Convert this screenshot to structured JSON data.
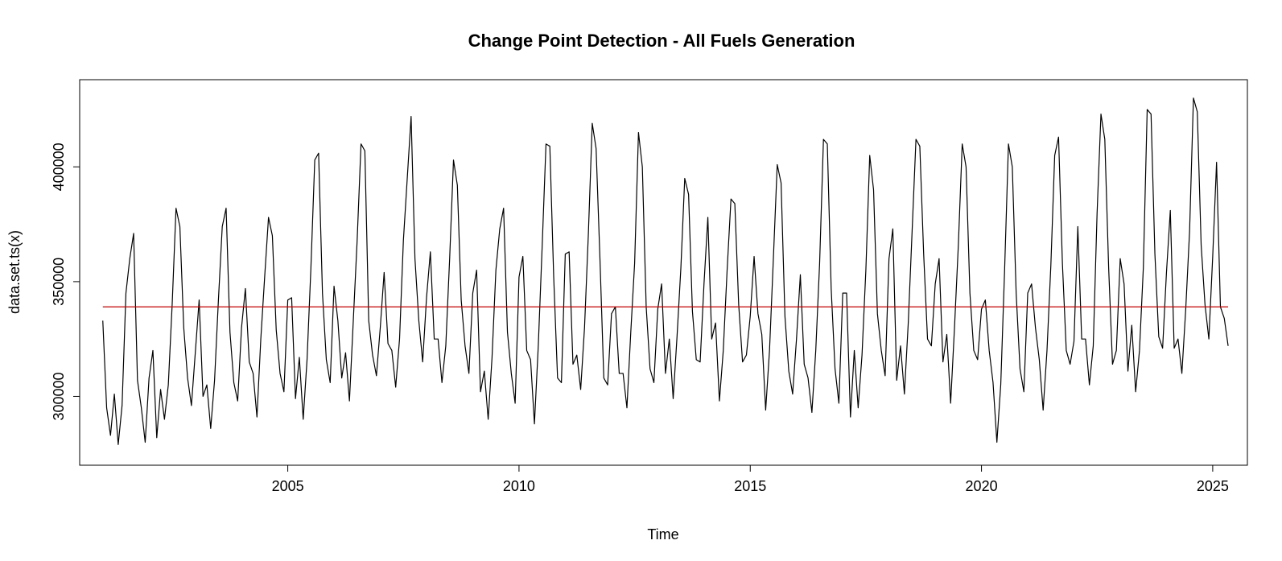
{
  "chart_data": {
    "type": "line",
    "title": "Change Point Detection - All Fuels Generation",
    "xlabel": "Time",
    "ylabel": "data.set.ts(x)",
    "xlim": [
      2000.5,
      2025.75
    ],
    "ylim": [
      270000,
      438000
    ],
    "x_ticks": [
      2005,
      2010,
      2015,
      2020,
      2025
    ],
    "y_ticks": [
      300000,
      350000,
      400000
    ],
    "grid": false,
    "legend": "none",
    "x_start": 2001.0,
    "frequency": 12,
    "series": [
      {
        "color": "#000000",
        "values": [
          333000,
          295000,
          283000,
          301000,
          279000,
          296000,
          345000,
          360000,
          371000,
          307000,
          295000,
          280000,
          308000,
          320000,
          282000,
          303000,
          290000,
          305000,
          340000,
          382000,
          374000,
          330000,
          308000,
          296000,
          319000,
          342000,
          300000,
          305000,
          286000,
          307000,
          342000,
          374000,
          382000,
          328000,
          306000,
          298000,
          330000,
          347000,
          315000,
          310000,
          291000,
          325000,
          352000,
          378000,
          370000,
          329000,
          310000,
          302000,
          342000,
          343000,
          299000,
          317000,
          290000,
          316000,
          356000,
          403000,
          406000,
          345000,
          316000,
          306000,
          348000,
          333000,
          308000,
          319000,
          298000,
          333000,
          368000,
          410000,
          407000,
          333000,
          318000,
          309000,
          330000,
          354000,
          323000,
          320000,
          304000,
          325000,
          368000,
          395000,
          422000,
          360000,
          333000,
          315000,
          343000,
          363000,
          325000,
          325000,
          306000,
          322000,
          360000,
          403000,
          392000,
          342000,
          322000,
          310000,
          345000,
          355000,
          302000,
          311000,
          290000,
          317000,
          355000,
          373000,
          382000,
          328000,
          310000,
          297000,
          352000,
          361000,
          320000,
          316000,
          288000,
          322000,
          365000,
          410000,
          409000,
          352000,
          308000,
          306000,
          362000,
          363000,
          314000,
          318000,
          303000,
          330000,
          371000,
          419000,
          408000,
          360000,
          308000,
          305000,
          336000,
          339000,
          310000,
          310000,
          295000,
          328000,
          358000,
          415000,
          400000,
          339000,
          312000,
          306000,
          338000,
          349000,
          310000,
          325000,
          299000,
          326000,
          356000,
          395000,
          388000,
          337000,
          316000,
          315000,
          349000,
          378000,
          325000,
          332000,
          298000,
          320000,
          355000,
          386000,
          384000,
          340000,
          315000,
          318000,
          335000,
          361000,
          336000,
          327000,
          294000,
          320000,
          360000,
          401000,
          393000,
          335000,
          311000,
          301000,
          325000,
          353000,
          314000,
          308000,
          293000,
          320000,
          358000,
          412000,
          410000,
          347000,
          312000,
          297000,
          345000,
          345000,
          291000,
          320000,
          295000,
          318000,
          355000,
          405000,
          390000,
          336000,
          320000,
          309000,
          360000,
          373000,
          307000,
          322000,
          301000,
          332000,
          372000,
          412000,
          409000,
          362000,
          325000,
          322000,
          349000,
          360000,
          315000,
          327000,
          297000,
          330000,
          366000,
          410000,
          400000,
          345000,
          320000,
          316000,
          338000,
          342000,
          320000,
          306000,
          280000,
          305000,
          355000,
          410000,
          400000,
          345000,
          312000,
          302000,
          345000,
          349000,
          330000,
          316000,
          294000,
          320000,
          357000,
          405000,
          413000,
          358000,
          320000,
          314000,
          324000,
          374000,
          325000,
          325000,
          305000,
          322000,
          380000,
          423000,
          412000,
          356000,
          314000,
          320000,
          360000,
          349000,
          311000,
          331000,
          302000,
          320000,
          356000,
          425000,
          423000,
          362000,
          326000,
          321000,
          354000,
          381000,
          321000,
          325000,
          310000,
          338000,
          372000,
          430000,
          424000,
          366000,
          340000,
          325000,
          361000,
          402000,
          339000,
          334000,
          322000
        ]
      }
    ],
    "change_points": [
      {
        "color": "#c00000",
        "x_start": 2001.0,
        "x_end": 2025.333,
        "value": 339000
      }
    ]
  }
}
